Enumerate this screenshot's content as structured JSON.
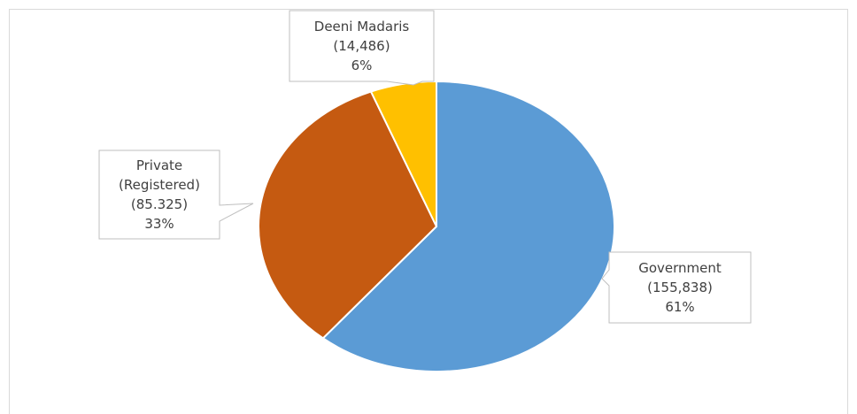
{
  "chart_data": {
    "type": "pie",
    "categories": [
      "Government",
      "Private (Registered)",
      "Deeni Madaris"
    ],
    "counts": [
      "(155,838)",
      "(85.325)",
      "(14,486)"
    ],
    "values": [
      61,
      33,
      6
    ],
    "value_labels": [
      "61%",
      "33%",
      "6%"
    ],
    "colors": [
      "#5b9bd5",
      "#c55a11",
      "#ffc000"
    ]
  }
}
